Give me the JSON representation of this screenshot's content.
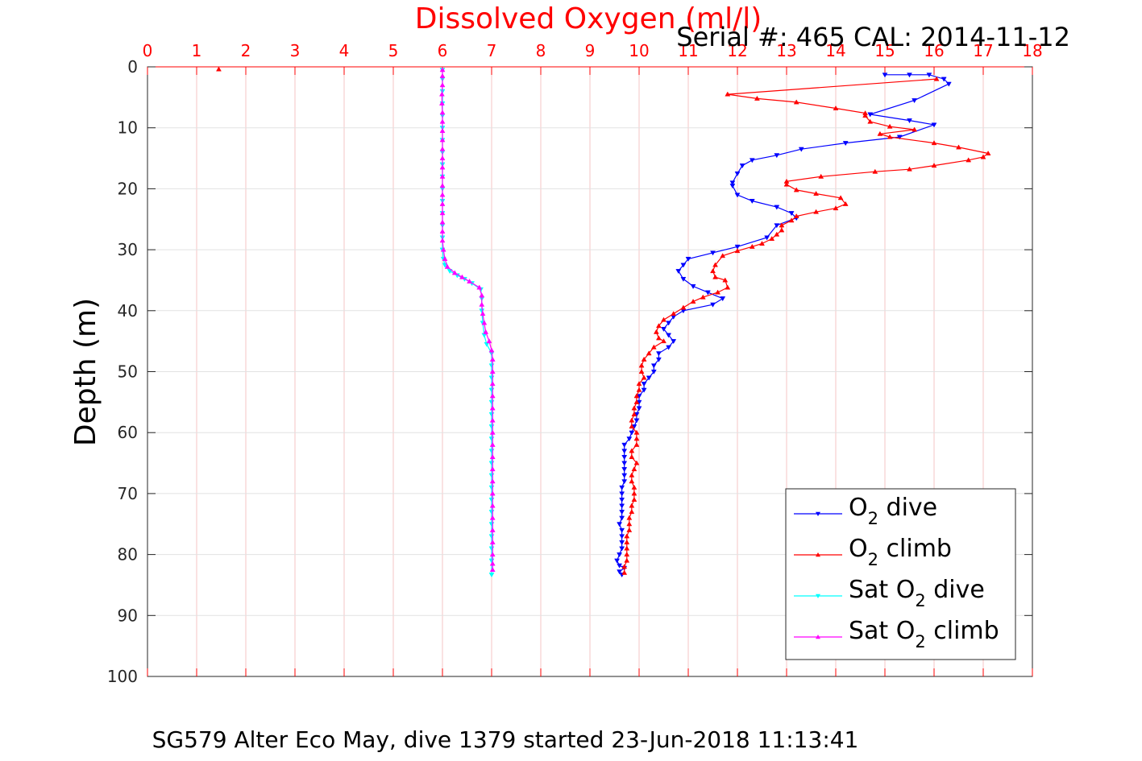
{
  "chart_data": {
    "type": "line",
    "title": "Dissolved Oxygen (ml/l)",
    "annotation": "Serial #: 465  CAL: 2014-11-12",
    "caption": "SG579 Alter Eco May, dive 1379 started 23-Jun-2018 11:13:41",
    "xlabel": "",
    "ylabel": "Depth (m)",
    "xlim": [
      0,
      18
    ],
    "ylim": [
      0,
      100
    ],
    "y_reversed": true,
    "x_axis_position": "top",
    "xticks": [
      "0",
      "1",
      "2",
      "3",
      "4",
      "5",
      "6",
      "7",
      "8",
      "9",
      "10",
      "11",
      "12",
      "13",
      "14",
      "15",
      "16",
      "17",
      "18"
    ],
    "yticks": [
      "0",
      "10",
      "20",
      "30",
      "40",
      "50",
      "60",
      "70",
      "80",
      "90",
      "100"
    ],
    "grid": true,
    "legend_position": "bottom-right",
    "legend": [
      {
        "prefix": "O",
        "sub": "2",
        "suffix": " dive"
      },
      {
        "prefix": "O",
        "sub": "2",
        "suffix": " climb"
      },
      {
        "prefix": "Sat O",
        "sub": "2",
        "suffix": " dive"
      },
      {
        "prefix": "Sat O",
        "sub": "2",
        "suffix": " climb"
      }
    ],
    "series": [
      {
        "color": "#0000ff",
        "marker": "triangle-down",
        "points": [
          [
            15.0,
            1.3
          ],
          [
            15.5,
            1.3
          ],
          [
            15.9,
            1.3
          ],
          [
            16.2,
            2.0
          ],
          [
            16.3,
            2.8
          ],
          [
            15.6,
            5.5
          ],
          [
            14.7,
            7.8
          ],
          [
            15.5,
            8.8
          ],
          [
            16.0,
            9.5
          ],
          [
            15.3,
            11.5
          ],
          [
            14.2,
            12.5
          ],
          [
            13.3,
            13.5
          ],
          [
            12.8,
            14.5
          ],
          [
            12.3,
            15.3
          ],
          [
            12.1,
            16.2
          ],
          [
            12.0,
            17.5
          ],
          [
            11.9,
            19.0
          ],
          [
            11.9,
            19.5
          ],
          [
            12.0,
            21.0
          ],
          [
            12.3,
            22.0
          ],
          [
            12.8,
            23.0
          ],
          [
            13.1,
            24.0
          ],
          [
            13.2,
            24.8
          ],
          [
            12.8,
            26.0
          ],
          [
            12.6,
            28.0
          ],
          [
            12.0,
            29.5
          ],
          [
            11.5,
            30.5
          ],
          [
            11.0,
            31.5
          ],
          [
            10.9,
            32.5
          ],
          [
            10.8,
            33.5
          ],
          [
            10.9,
            34.8
          ],
          [
            11.1,
            36.0
          ],
          [
            11.4,
            37.0
          ],
          [
            11.7,
            38.0
          ],
          [
            11.5,
            39.0
          ],
          [
            10.9,
            40.0
          ],
          [
            10.7,
            41.0
          ],
          [
            10.6,
            42.0
          ],
          [
            10.5,
            43.0
          ],
          [
            10.6,
            44.0
          ],
          [
            10.7,
            45.0
          ],
          [
            10.6,
            46.0
          ],
          [
            10.4,
            47.0
          ],
          [
            10.4,
            48.0
          ],
          [
            10.3,
            49.0
          ],
          [
            10.3,
            50.0
          ],
          [
            10.2,
            51.0
          ],
          [
            10.1,
            52.0
          ],
          [
            10.1,
            53.0
          ],
          [
            10.0,
            54.0
          ],
          [
            10.0,
            55.0
          ],
          [
            10.0,
            56.0
          ],
          [
            9.95,
            57.0
          ],
          [
            9.95,
            58.0
          ],
          [
            9.9,
            59.0
          ],
          [
            9.85,
            60.0
          ],
          [
            9.8,
            61.0
          ],
          [
            9.7,
            62.0
          ],
          [
            9.7,
            63.0
          ],
          [
            9.7,
            64.0
          ],
          [
            9.7,
            65.0
          ],
          [
            9.7,
            66.0
          ],
          [
            9.7,
            67.0
          ],
          [
            9.7,
            68.0
          ],
          [
            9.65,
            69.0
          ],
          [
            9.65,
            70.0
          ],
          [
            9.65,
            71.0
          ],
          [
            9.65,
            72.0
          ],
          [
            9.65,
            73.0
          ],
          [
            9.65,
            74.0
          ],
          [
            9.6,
            75.0
          ],
          [
            9.65,
            76.0
          ],
          [
            9.65,
            77.0
          ],
          [
            9.65,
            78.0
          ],
          [
            9.65,
            79.0
          ],
          [
            9.6,
            80.0
          ],
          [
            9.55,
            81.0
          ],
          [
            9.6,
            81.8
          ],
          [
            9.7,
            82.2
          ],
          [
            9.6,
            82.8
          ],
          [
            9.65,
            83.3
          ]
        ]
      },
      {
        "color": "#ff0000",
        "marker": "triangle-up",
        "points": [
          [
            1.45,
            0.4
          ],
          [
            16.05,
            2.0
          ],
          [
            11.8,
            4.5
          ],
          [
            12.4,
            5.2
          ],
          [
            13.2,
            5.8
          ],
          [
            14.0,
            6.8
          ],
          [
            14.6,
            7.6
          ],
          [
            14.6,
            8.0
          ],
          [
            14.7,
            9.0
          ],
          [
            15.1,
            9.8
          ],
          [
            15.6,
            10.3
          ],
          [
            14.9,
            11.0
          ],
          [
            15.1,
            11.5
          ],
          [
            16.0,
            12.5
          ],
          [
            16.5,
            13.2
          ],
          [
            17.1,
            14.2
          ],
          [
            17.0,
            14.8
          ],
          [
            16.7,
            15.3
          ],
          [
            16.0,
            16.2
          ],
          [
            15.5,
            16.8
          ],
          [
            14.8,
            17.2
          ],
          [
            13.7,
            18.0
          ],
          [
            13.0,
            18.8
          ],
          [
            13.0,
            19.3
          ],
          [
            13.2,
            20.2
          ],
          [
            13.6,
            20.8
          ],
          [
            14.1,
            21.5
          ],
          [
            14.2,
            22.5
          ],
          [
            14.0,
            23.2
          ],
          [
            13.6,
            23.8
          ],
          [
            13.2,
            24.5
          ],
          [
            13.1,
            25.2
          ],
          [
            12.9,
            26.0
          ],
          [
            12.9,
            26.8
          ],
          [
            12.8,
            27.5
          ],
          [
            12.7,
            28.2
          ],
          [
            12.5,
            29.0
          ],
          [
            12.3,
            29.5
          ],
          [
            12.0,
            30.2
          ],
          [
            11.7,
            31.0
          ],
          [
            11.55,
            32.5
          ],
          [
            11.5,
            33.5
          ],
          [
            11.55,
            34.5
          ],
          [
            11.75,
            35.0
          ],
          [
            11.8,
            36.2
          ],
          [
            11.6,
            37.0
          ],
          [
            11.3,
            37.8
          ],
          [
            11.1,
            38.5
          ],
          [
            10.9,
            39.5
          ],
          [
            10.7,
            40.5
          ],
          [
            10.5,
            41.5
          ],
          [
            10.4,
            42.5
          ],
          [
            10.35,
            43.5
          ],
          [
            10.4,
            44.5
          ],
          [
            10.5,
            45.0
          ],
          [
            10.3,
            46.0
          ],
          [
            10.2,
            47.0
          ],
          [
            10.1,
            48.0
          ],
          [
            10.05,
            49.0
          ],
          [
            10.05,
            50.0
          ],
          [
            10.1,
            51.0
          ],
          [
            10.0,
            52.0
          ],
          [
            10.0,
            53.0
          ],
          [
            9.95,
            54.0
          ],
          [
            9.95,
            55.0
          ],
          [
            9.9,
            56.0
          ],
          [
            9.9,
            57.0
          ],
          [
            9.85,
            58.0
          ],
          [
            9.85,
            59.0
          ],
          [
            9.95,
            60.0
          ],
          [
            9.95,
            61.0
          ],
          [
            9.95,
            62.0
          ],
          [
            9.85,
            63.0
          ],
          [
            9.85,
            64.0
          ],
          [
            9.95,
            65.0
          ],
          [
            9.9,
            66.0
          ],
          [
            9.85,
            67.0
          ],
          [
            9.85,
            68.0
          ],
          [
            9.9,
            69.0
          ],
          [
            9.9,
            70.0
          ],
          [
            9.9,
            71.0
          ],
          [
            9.85,
            72.0
          ],
          [
            9.85,
            73.0
          ],
          [
            9.8,
            74.0
          ],
          [
            9.8,
            75.0
          ],
          [
            9.8,
            76.0
          ],
          [
            9.75,
            77.0
          ],
          [
            9.75,
            78.0
          ],
          [
            9.75,
            79.0
          ],
          [
            9.75,
            80.0
          ],
          [
            9.75,
            81.0
          ],
          [
            9.7,
            82.0
          ],
          [
            9.7,
            83.0
          ]
        ]
      },
      {
        "color": "#00ffff",
        "marker": "triangle-down",
        "points": [
          [
            6.0,
            0.5
          ],
          [
            6.0,
            2.0
          ],
          [
            6.0,
            4.0
          ],
          [
            6.0,
            6.0
          ],
          [
            6.0,
            8.0
          ],
          [
            6.0,
            10.0
          ],
          [
            6.0,
            12.0
          ],
          [
            6.0,
            14.0
          ],
          [
            6.0,
            16.0
          ],
          [
            6.0,
            18.0
          ],
          [
            6.0,
            20.0
          ],
          [
            6.0,
            22.0
          ],
          [
            6.0,
            24.0
          ],
          [
            6.0,
            26.0
          ],
          [
            6.0,
            28.0
          ],
          [
            6.0,
            30.0
          ],
          [
            6.02,
            31.5
          ],
          [
            6.05,
            32.5
          ],
          [
            6.15,
            33.5
          ],
          [
            6.3,
            34.2
          ],
          [
            6.45,
            34.8
          ],
          [
            6.6,
            35.5
          ],
          [
            6.78,
            36.5
          ],
          [
            6.8,
            38.0
          ],
          [
            6.8,
            40.0
          ],
          [
            6.82,
            42.0
          ],
          [
            6.85,
            44.0
          ],
          [
            6.9,
            45.5
          ],
          [
            7.0,
            47.0
          ],
          [
            7.0,
            49.0
          ],
          [
            7.0,
            51.0
          ],
          [
            7.0,
            53.0
          ],
          [
            7.0,
            55.0
          ],
          [
            7.0,
            57.0
          ],
          [
            7.0,
            59.0
          ],
          [
            7.0,
            61.0
          ],
          [
            7.0,
            63.0
          ],
          [
            7.0,
            65.0
          ],
          [
            7.0,
            67.0
          ],
          [
            7.0,
            69.0
          ],
          [
            7.0,
            71.0
          ],
          [
            7.0,
            73.0
          ],
          [
            7.0,
            75.0
          ],
          [
            7.0,
            77.0
          ],
          [
            7.0,
            79.0
          ],
          [
            7.0,
            81.0
          ],
          [
            7.0,
            83.3
          ]
        ]
      },
      {
        "color": "#ff00ff",
        "marker": "triangle-up",
        "points": [
          [
            6.0,
            0.5
          ],
          [
            6.0,
            1.5
          ],
          [
            6.0,
            3.0
          ],
          [
            5.99,
            4.5
          ],
          [
            5.99,
            6.0
          ],
          [
            6.0,
            7.5
          ],
          [
            6.0,
            9.0
          ],
          [
            6.0,
            10.5
          ],
          [
            6.0,
            12.0
          ],
          [
            6.0,
            13.5
          ],
          [
            6.0,
            15.0
          ],
          [
            6.0,
            16.5
          ],
          [
            6.0,
            18.0
          ],
          [
            6.0,
            19.5
          ],
          [
            6.0,
            21.0
          ],
          [
            6.0,
            22.5
          ],
          [
            6.0,
            24.0
          ],
          [
            6.0,
            25.5
          ],
          [
            6.0,
            27.0
          ],
          [
            6.0,
            28.5
          ],
          [
            6.02,
            30.0
          ],
          [
            6.05,
            31.5
          ],
          [
            6.1,
            32.8
          ],
          [
            6.25,
            33.8
          ],
          [
            6.4,
            34.5
          ],
          [
            6.55,
            35.2
          ],
          [
            6.75,
            36.2
          ],
          [
            6.8,
            37.5
          ],
          [
            6.8,
            39.0
          ],
          [
            6.82,
            40.5
          ],
          [
            6.85,
            42.0
          ],
          [
            6.88,
            43.5
          ],
          [
            6.95,
            45.0
          ],
          [
            7.0,
            46.5
          ],
          [
            7.02,
            48.0
          ],
          [
            7.02,
            50.0
          ],
          [
            7.02,
            52.0
          ],
          [
            7.02,
            54.0
          ],
          [
            7.02,
            56.0
          ],
          [
            7.02,
            58.0
          ],
          [
            7.02,
            60.0
          ],
          [
            7.02,
            62.0
          ],
          [
            7.02,
            64.0
          ],
          [
            7.02,
            66.0
          ],
          [
            7.02,
            68.0
          ],
          [
            7.02,
            70.0
          ],
          [
            7.02,
            72.0
          ],
          [
            7.02,
            74.0
          ],
          [
            7.02,
            76.0
          ],
          [
            7.02,
            78.0
          ],
          [
            7.02,
            80.0
          ],
          [
            7.02,
            81.5
          ],
          [
            7.02,
            82.5
          ]
        ]
      }
    ]
  }
}
